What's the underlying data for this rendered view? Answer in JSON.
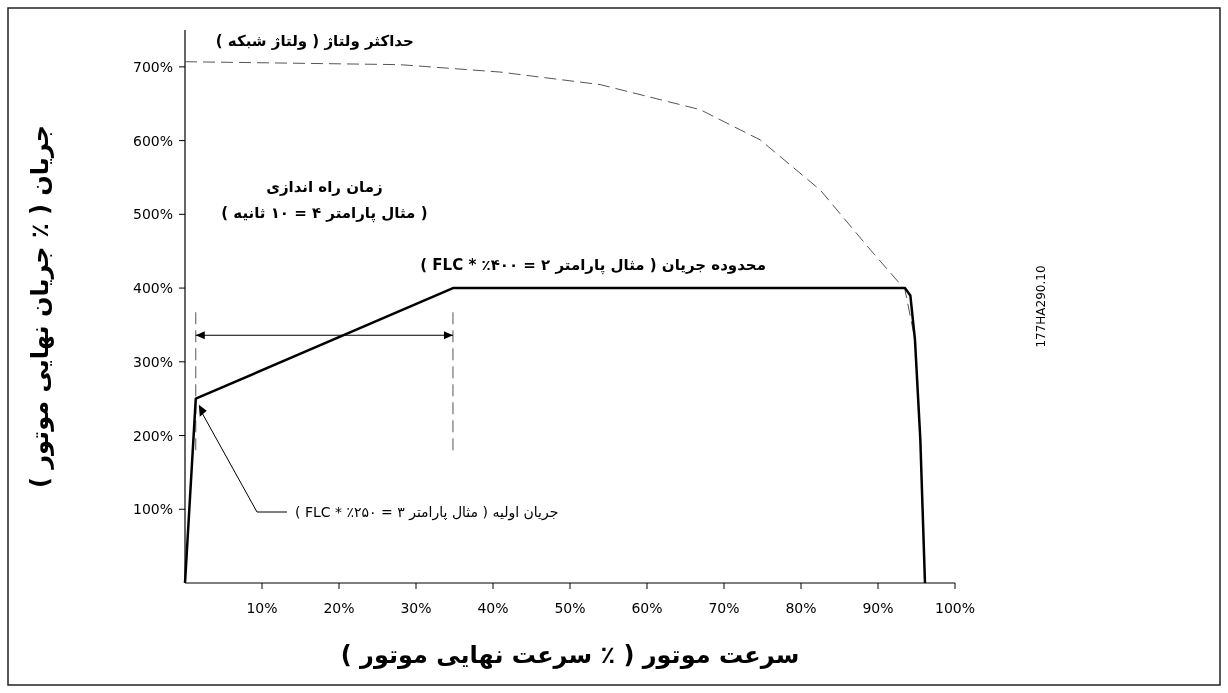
{
  "chart_data": {
    "type": "line",
    "xlabel": "سرعت موتور ( ٪ سرعت نهایی موتور )",
    "ylabel": "جریان ( ٪ جریان نهایی موتور )",
    "xlim": [
      0,
      100
    ],
    "ylim": [
      0,
      750
    ],
    "xticks": [
      {
        "value": 10,
        "label": "10%"
      },
      {
        "value": 20,
        "label": "20%"
      },
      {
        "value": 30,
        "label": "30%"
      },
      {
        "value": 40,
        "label": "40%"
      },
      {
        "value": 50,
        "label": "50%"
      },
      {
        "value": 60,
        "label": "60%"
      },
      {
        "value": 70,
        "label": "70%"
      },
      {
        "value": 80,
        "label": "80%"
      },
      {
        "value": 90,
        "label": "90%"
      },
      {
        "value": 100,
        "label": "100%"
      }
    ],
    "yticks": [
      {
        "value": 100,
        "label": "100%"
      },
      {
        "value": 200,
        "label": "200%"
      },
      {
        "value": 300,
        "label": "300%"
      },
      {
        "value": 400,
        "label": "400%"
      },
      {
        "value": 500,
        "label": "500%"
      },
      {
        "value": 600,
        "label": "600%"
      },
      {
        "value": 700,
        "label": "700%"
      }
    ],
    "grid": false,
    "series": [
      {
        "color": "#000000",
        "line_style": "solid",
        "x": [
          0,
          1.4,
          34.8,
          93.5,
          94.2,
          94.8,
          95.5,
          96.1
        ],
        "values": [
          0,
          250,
          400,
          400,
          390,
          330,
          194,
          0
        ]
      },
      {
        "color": "#555555",
        "line_style": "dashed",
        "x": [
          0,
          27.9,
          40.9,
          53.9,
          66.9,
          74.7,
          82.5,
          89,
          93.5,
          94.8,
          95.5,
          96.1
        ],
        "values": [
          707,
          703,
          693,
          676,
          642,
          601,
          533,
          452,
          398,
          330,
          194,
          0
        ]
      }
    ],
    "ref_lines": [
      {
        "axis": "x",
        "value": 1.4,
        "line_style": "dashed",
        "color": "#555555"
      },
      {
        "axis": "x",
        "value": 34.8,
        "line_style": "dashed",
        "color": "#555555"
      }
    ],
    "annotations": [
      {
        "text": "حداکثر ولتاژ ( ولتاژ شبکه )",
        "x": 4,
        "y": 707
      },
      "زمان راه اندازی",
      "( مثال پارامتر ۴ = ۱۰ ثانیه )",
      {
        "text": "محدوده جریان ( مثال پارامتر ۲ = ۴۰۰٪ * FLC )",
        "x": 53,
        "y": 400
      },
      "177HA290.10",
      "جریان اولیه ( مثال پارامتر ۳ = ۲۵۰٪ * FLC )"
    ]
  }
}
